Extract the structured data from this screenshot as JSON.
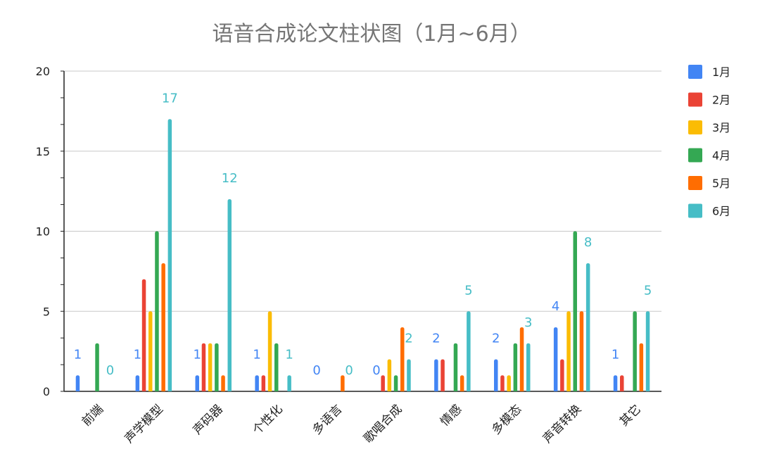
{
  "chart_data": {
    "type": "bar",
    "title": "语音合成论文柱状图（1月~6月）",
    "xlabel": "",
    "ylabel": "",
    "ylim": [
      0,
      20
    ],
    "yticks": [
      0,
      5,
      10,
      15,
      20
    ],
    "grid": true,
    "legend_position": "right",
    "categories": [
      "前端",
      "声学模型",
      "声码器",
      "个性化",
      "多语言",
      "歌唱合成",
      "情感",
      "多模态",
      "声音转换",
      "其它"
    ],
    "series": [
      {
        "name": "1月",
        "color": "#4285f4",
        "values": [
          1,
          1,
          1,
          1,
          0,
          0,
          2,
          2,
          4,
          1
        ]
      },
      {
        "name": "2月",
        "color": "#ea4335",
        "values": [
          0,
          7,
          3,
          1,
          0,
          1,
          2,
          1,
          2,
          1
        ]
      },
      {
        "name": "3月",
        "color": "#fbbc04",
        "values": [
          0,
          5,
          3,
          5,
          0,
          2,
          0,
          1,
          5,
          0
        ]
      },
      {
        "name": "4月",
        "color": "#34a853",
        "values": [
          3,
          10,
          3,
          3,
          0,
          1,
          3,
          3,
          10,
          5
        ]
      },
      {
        "name": "5月",
        "color": "#ff6d01",
        "values": [
          0,
          8,
          1,
          0,
          1,
          4,
          1,
          4,
          5,
          3
        ]
      },
      {
        "name": "6月",
        "color": "#46bdc6",
        "values": [
          0,
          17,
          12,
          1,
          0,
          2,
          5,
          3,
          8,
          5
        ]
      }
    ],
    "data_labels": [
      {
        "category": 0,
        "series": 0,
        "text": "1"
      },
      {
        "category": 0,
        "series": 5,
        "text": "0"
      },
      {
        "category": 1,
        "series": 0,
        "text": "1"
      },
      {
        "category": 1,
        "series": 5,
        "text": "17"
      },
      {
        "category": 2,
        "series": 0,
        "text": "1"
      },
      {
        "category": 2,
        "series": 5,
        "text": "12"
      },
      {
        "category": 3,
        "series": 0,
        "text": "1"
      },
      {
        "category": 3,
        "series": 5,
        "text": "1"
      },
      {
        "category": 4,
        "series": 0,
        "text": "0"
      },
      {
        "category": 4,
        "series": 5,
        "text": "0"
      },
      {
        "category": 5,
        "series": 0,
        "text": "0"
      },
      {
        "category": 5,
        "series": 5,
        "text": "2"
      },
      {
        "category": 6,
        "series": 0,
        "text": "2"
      },
      {
        "category": 6,
        "series": 5,
        "text": "5"
      },
      {
        "category": 7,
        "series": 0,
        "text": "2"
      },
      {
        "category": 7,
        "series": 5,
        "text": "3"
      },
      {
        "category": 8,
        "series": 0,
        "text": "4"
      },
      {
        "category": 8,
        "series": 5,
        "text": "8"
      },
      {
        "category": 9,
        "series": 0,
        "text": "1"
      },
      {
        "category": 9,
        "series": 5,
        "text": "5"
      }
    ]
  }
}
